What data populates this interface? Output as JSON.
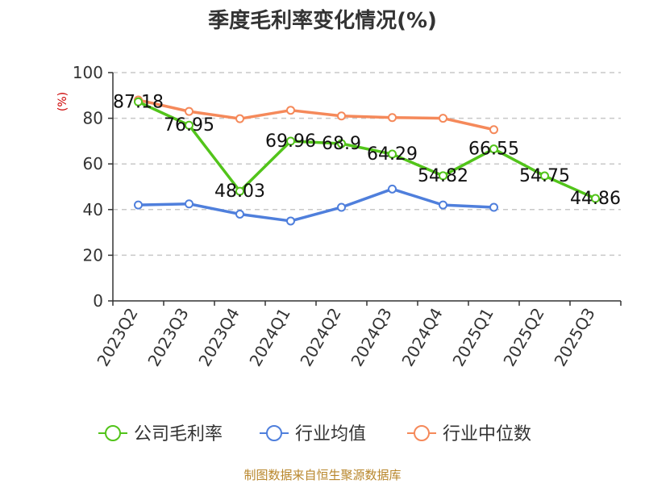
{
  "chart_data": {
    "type": "line",
    "title": "季度毛利率变化情况(%)",
    "ylabel": "(%)",
    "ylim": [
      0,
      100
    ],
    "yticks": [
      0,
      20,
      40,
      60,
      80,
      100
    ],
    "grid": true,
    "legend_position": "bottom",
    "categories": [
      "2023Q2",
      "2023Q3",
      "2023Q4",
      "2024Q1",
      "2024Q2",
      "2024Q3",
      "2024Q4",
      "2025Q1",
      "2025Q2",
      "2025Q3"
    ],
    "series": [
      {
        "name": "公司毛利率",
        "color": "#52c41a",
        "values": [
          87.18,
          76.95,
          48.03,
          69.96,
          68.9,
          64.29,
          54.82,
          66.55,
          54.75,
          44.86
        ],
        "labels": [
          "87.18",
          "76.95",
          "48.03",
          "69.96",
          "68.9",
          "64.29",
          "54.82",
          "66.55",
          "54.75",
          "44.86"
        ]
      },
      {
        "name": "行业均值",
        "color": "#4f7fdc",
        "values": [
          42.0,
          42.5,
          38.0,
          35.0,
          41.0,
          49.0,
          42.0,
          41.0,
          null,
          null
        ]
      },
      {
        "name": "行业中位数",
        "color": "#f5895a",
        "values": [
          88.0,
          83.0,
          79.8,
          83.5,
          81.0,
          80.3,
          80.0,
          75.0,
          null,
          null
        ]
      }
    ],
    "source": "制图数据来自恒生聚源数据库"
  }
}
